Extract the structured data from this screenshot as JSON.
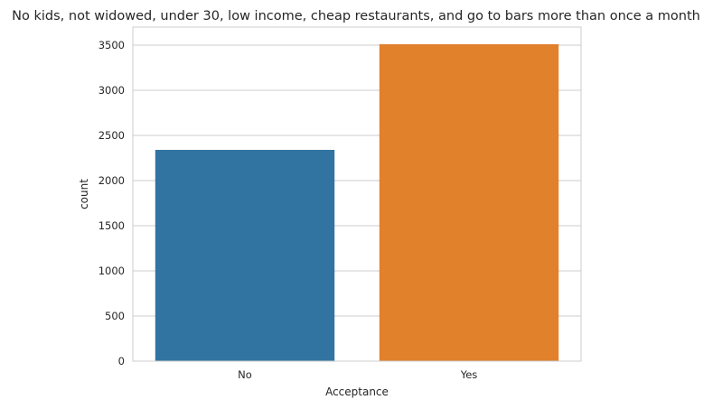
{
  "chart_data": {
    "type": "bar",
    "title": "No kids, not widowed, under 30, low income, cheap restaurants, and go to bars more than once a month",
    "xlabel": "Acceptance",
    "ylabel": "count",
    "categories": [
      "No",
      "Yes"
    ],
    "values": [
      2340,
      3510
    ],
    "ylim": [
      0,
      3700
    ],
    "yticks": [
      0,
      500,
      1000,
      1500,
      2000,
      2500,
      3000,
      3500
    ],
    "grid": true,
    "bar_colors": [
      "#3274a1",
      "#e1812c"
    ],
    "grid_color": "#cccccc",
    "axes_edge_color": "#cccccc",
    "background_color": "#ffffff"
  }
}
